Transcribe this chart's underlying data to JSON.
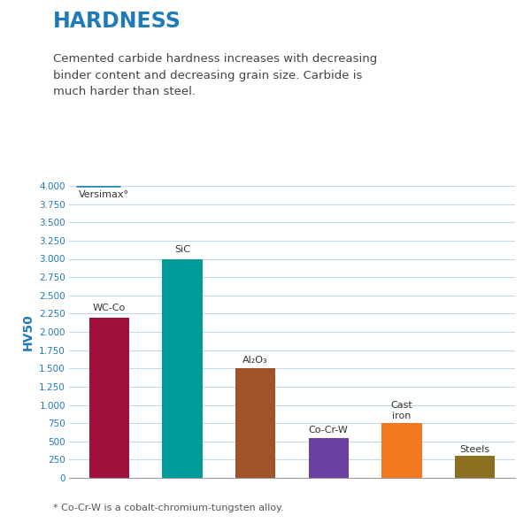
{
  "title": "HARDNESS",
  "subtitle": "Cemented carbide hardness increases with decreasing\nbinder content and decreasing grain size. Carbide is\nmuch harder than steel.",
  "ylabel": "HV50",
  "footnote": "* Co-Cr-W is a cobalt-chromium-tungsten alloy.",
  "versimax_label": "Versimax°",
  "versimax_value": 4000,
  "versimax_line_color": "#2B8BBF",
  "categories": [
    "WC-Co",
    "SiC",
    "Al$_2$O$_3$",
    "Co-Cr-W",
    "Cast\niron",
    "Steels"
  ],
  "cat_labels": [
    "WC-Co",
    "SiC",
    "Al₂O₃",
    "Co-Cr-W",
    "Cast\niron",
    "Steels"
  ],
  "values": [
    2200,
    3000,
    1500,
    550,
    750,
    300
  ],
  "bar_colors": [
    "#A0103C",
    "#009B9B",
    "#A05228",
    "#6B3FA0",
    "#F47820",
    "#8B7020"
  ],
  "bar_width": 0.55,
  "ylim": [
    0,
    4000
  ],
  "yticks": [
    0,
    250,
    500,
    750,
    1000,
    1250,
    1500,
    1750,
    2000,
    2250,
    2500,
    2750,
    3000,
    3250,
    3500,
    3750,
    4000
  ],
  "ytick_labels": [
    "0",
    "250",
    "500",
    "750",
    "1.000",
    "1.250",
    "1.500",
    "1.750",
    "2.000",
    "2.250",
    "2.500",
    "2.750",
    "3.000",
    "3.250",
    "3.500",
    "3.750",
    "4.000"
  ],
  "background_color": "#FFFFFF",
  "grid_color": "#C5D8EA",
  "title_color": "#1F7AB8",
  "subtitle_color": "#444444",
  "ylabel_color": "#1F7AB8",
  "ytick_color": "#1F7AB8",
  "label_color": "#333333",
  "versimax_color": "#333333",
  "label_fontsize": 8.0,
  "title_fontsize": 17,
  "subtitle_fontsize": 9.5,
  "ylabel_fontsize": 10,
  "ytick_fontsize": 7.5,
  "footnote_fontsize": 8.0,
  "footnote_color": "#555555"
}
